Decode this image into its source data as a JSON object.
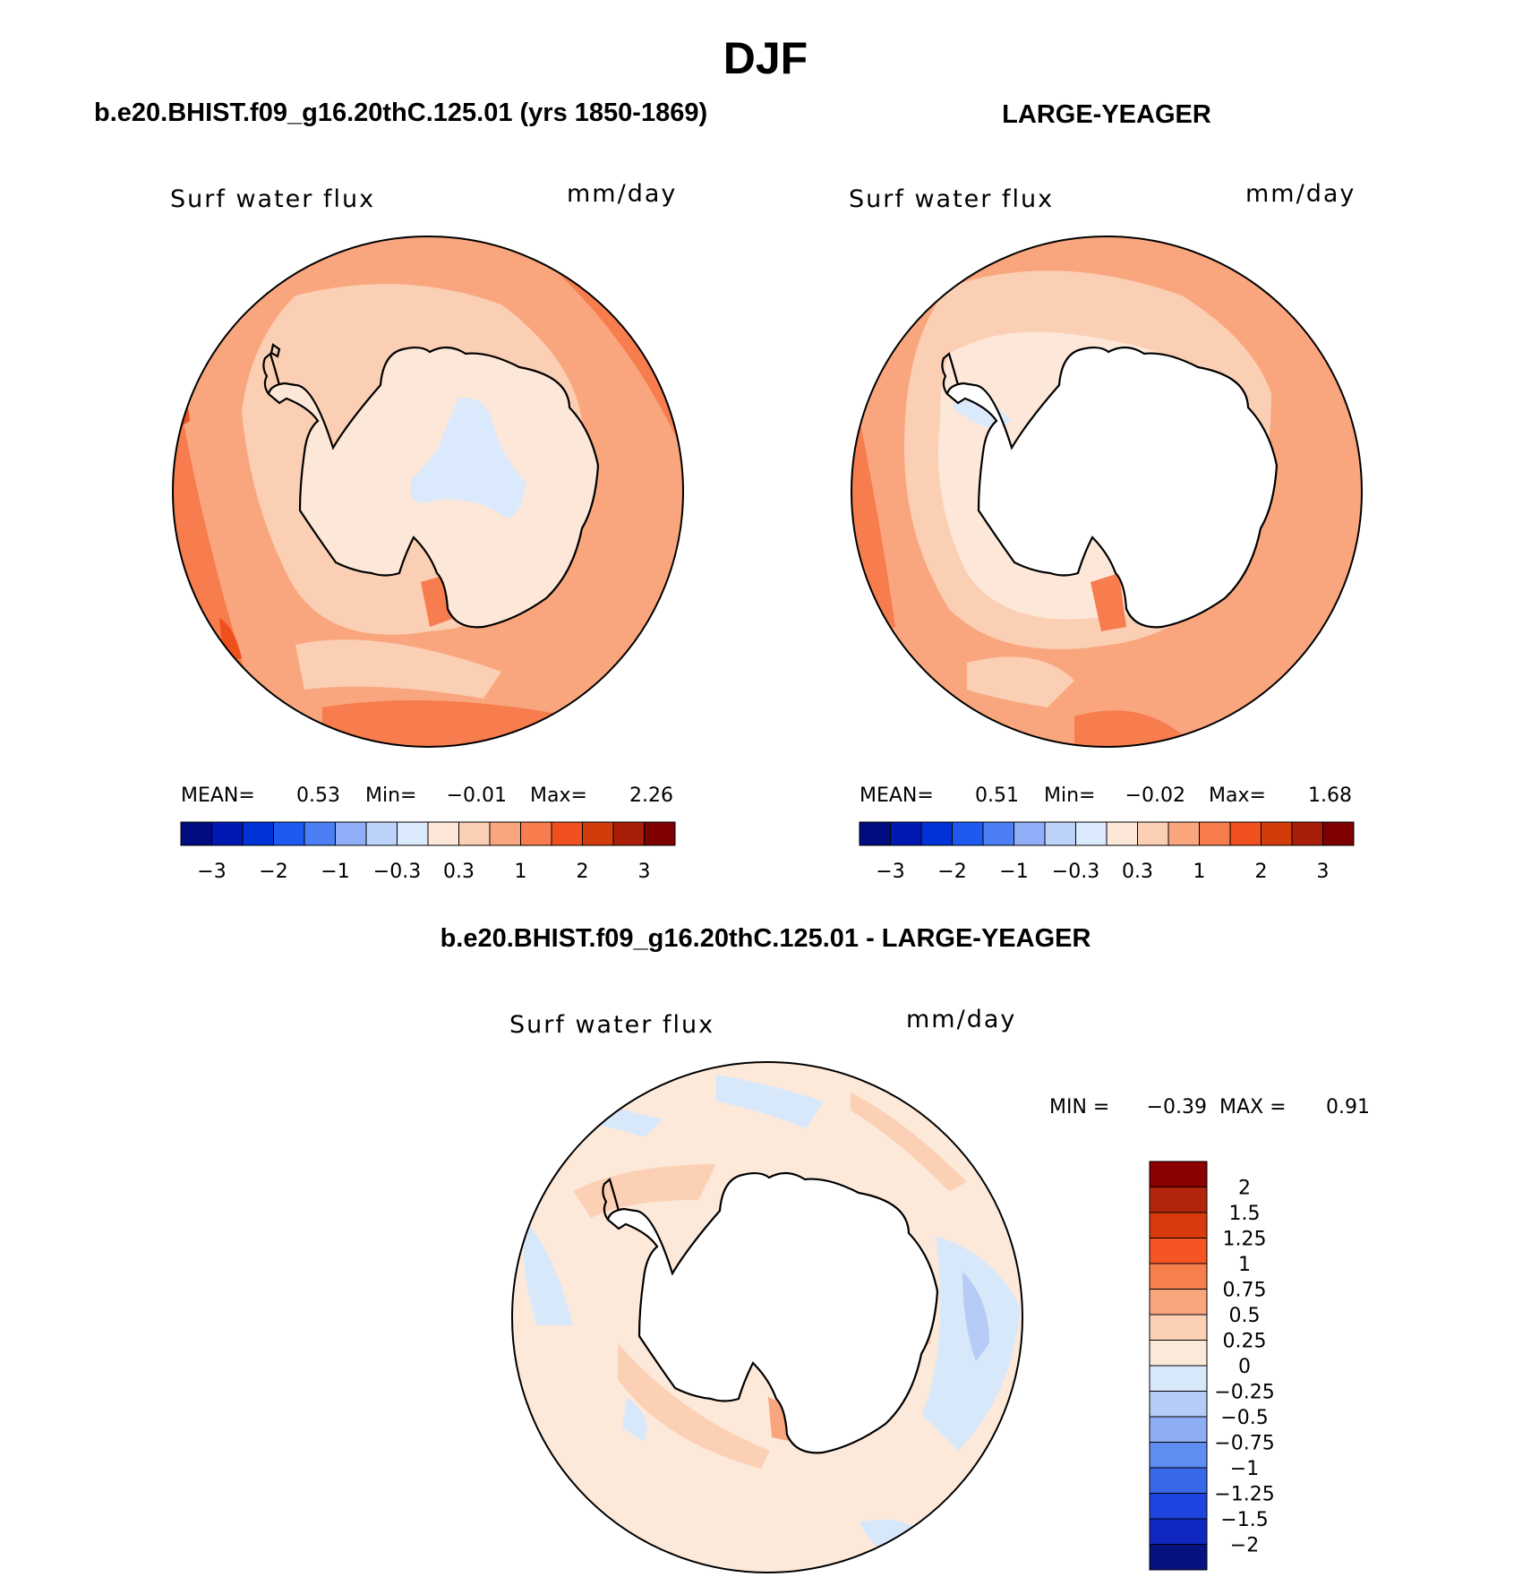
{
  "title": "DJF",
  "chart_data": [
    {
      "type": "contour-map",
      "panel": "top-left",
      "title": "b.e20.BHIST.f09_g16.20thC.125.01 (yrs 1850-1869)",
      "variable": "Surf water flux",
      "units": "mm/day",
      "projection": "south-polar-stereographic",
      "stats": {
        "mean_label": "MEAN=",
        "mean": "0.53",
        "min_label": "Min=",
        "min": "−0.01",
        "max_label": "Max=",
        "max": "2.26"
      },
      "colorbar_tick_labels": [
        "−3",
        "−2",
        "−1",
        "−0.3",
        "0.3",
        "1",
        "2",
        "3"
      ]
    },
    {
      "type": "contour-map",
      "panel": "top-right",
      "title": "LARGE-YEAGER",
      "variable": "Surf water flux",
      "units": "mm/day",
      "projection": "south-polar-stereographic",
      "stats": {
        "mean_label": "MEAN=",
        "mean": "0.51",
        "min_label": "Min=",
        "min": "−0.02",
        "max_label": "Max=",
        "max": "1.68"
      },
      "colorbar_tick_labels": [
        "−3",
        "−2",
        "−1",
        "−0.3",
        "0.3",
        "1",
        "2",
        "3"
      ]
    },
    {
      "type": "contour-map",
      "panel": "bottom-difference",
      "title": "b.e20.BHIST.f09_g16.20thC.125.01 - LARGE-YEAGER",
      "variable": "Surf water flux",
      "units": "mm/day",
      "projection": "south-polar-stereographic",
      "stats": {
        "min_label": "MIN =",
        "min": "−0.39",
        "max_label": "MAX =",
        "max": "0.91"
      },
      "colorbar_tick_labels": [
        "2",
        "1.5",
        "1.25",
        "1",
        "0.75",
        "0.5",
        "0.25",
        "0",
        "−0.25",
        "−0.5",
        "−0.75",
        "−1",
        "−1.25",
        "−1.5",
        "−2"
      ]
    }
  ],
  "colors": {
    "top_colorbar": [
      "#000c7f",
      "#0019b2",
      "#0032d8",
      "#1e5af0",
      "#4c7ff5",
      "#8faef7",
      "#bcd2f8",
      "#dae9fb",
      "#fde7d8",
      "#fbcfb4",
      "#f9a67e",
      "#f77c4e",
      "#f0501e",
      "#d23c0a",
      "#a91e08",
      "#7f0000"
    ],
    "diff_colorbar_top_to_bottom": [
      "#8b0000",
      "#b3250a",
      "#d93a0d",
      "#f55423",
      "#f77f4d",
      "#f9a67f",
      "#fcd0b5",
      "#fde9da",
      "#d8e8fb",
      "#b6ccf6",
      "#8eaef4",
      "#5f8df2",
      "#3a68ea",
      "#1e45e0",
      "#0f28c2",
      "#06127f"
    ],
    "land": "#ffffff",
    "coast": "#000000"
  }
}
